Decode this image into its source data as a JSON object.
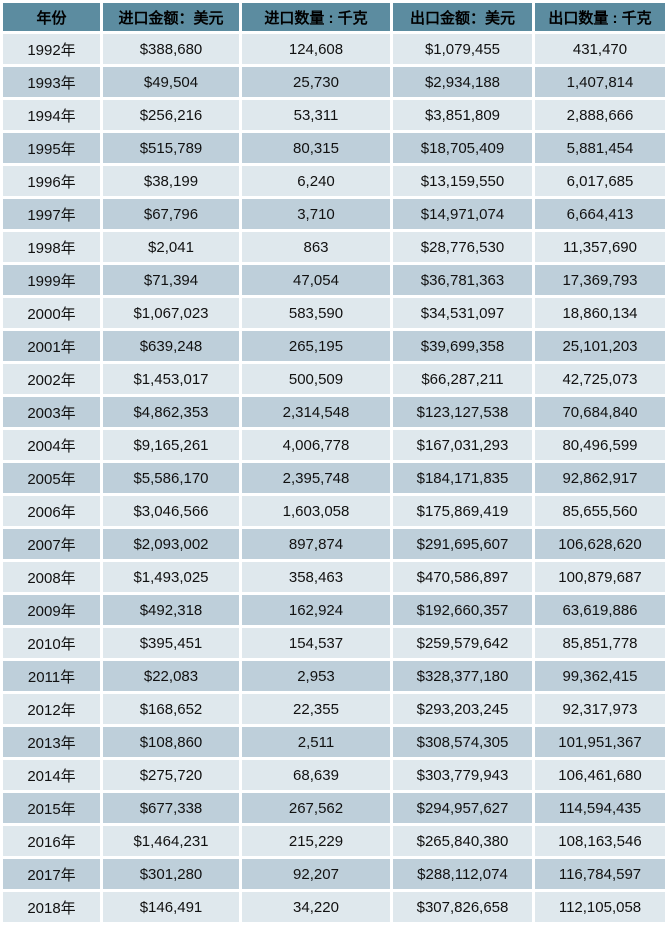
{
  "colors": {
    "header_bg": "#5C8CA0",
    "row_light": "#DFE8ED",
    "row_dark": "#BECFDA",
    "grid": "#FFFFFF",
    "text": "#111111"
  },
  "chart_data": {
    "type": "table",
    "title": "",
    "columns": [
      "年份",
      "进口金额：美元",
      "进口数量 : 千克",
      "出口金额：美元",
      "出口数量 : 千克"
    ],
    "column_keys": [
      "year",
      "import-amount-usd",
      "import-qty-kg",
      "export-amount-usd",
      "export-qty-kg"
    ],
    "rows": [
      [
        "1992年",
        "$388,680",
        "124,608",
        "$1,079,455",
        "431,470"
      ],
      [
        "1993年",
        "$49,504",
        "25,730",
        "$2,934,188",
        "1,407,814"
      ],
      [
        "1994年",
        "$256,216",
        "53,311",
        "$3,851,809",
        "2,888,666"
      ],
      [
        "1995年",
        "$515,789",
        "80,315",
        "$18,705,409",
        "5,881,454"
      ],
      [
        "1996年",
        "$38,199",
        "6,240",
        "$13,159,550",
        "6,017,685"
      ],
      [
        "1997年",
        "$67,796",
        "3,710",
        "$14,971,074",
        "6,664,413"
      ],
      [
        "1998年",
        "$2,041",
        "863",
        "$28,776,530",
        "11,357,690"
      ],
      [
        "1999年",
        "$71,394",
        "47,054",
        "$36,781,363",
        "17,369,793"
      ],
      [
        "2000年",
        "$1,067,023",
        "583,590",
        "$34,531,097",
        "18,860,134"
      ],
      [
        "2001年",
        "$639,248",
        "265,195",
        "$39,699,358",
        "25,101,203"
      ],
      [
        "2002年",
        "$1,453,017",
        "500,509",
        "$66,287,211",
        "42,725,073"
      ],
      [
        "2003年",
        "$4,862,353",
        "2,314,548",
        "$123,127,538",
        "70,684,840"
      ],
      [
        "2004年",
        "$9,165,261",
        "4,006,778",
        "$167,031,293",
        "80,496,599"
      ],
      [
        "2005年",
        "$5,586,170",
        "2,395,748",
        "$184,171,835",
        "92,862,917"
      ],
      [
        "2006年",
        "$3,046,566",
        "1,603,058",
        "$175,869,419",
        "85,655,560"
      ],
      [
        "2007年",
        "$2,093,002",
        "897,874",
        "$291,695,607",
        "106,628,620"
      ],
      [
        "2008年",
        "$1,493,025",
        "358,463",
        "$470,586,897",
        "100,879,687"
      ],
      [
        "2009年",
        "$492,318",
        "162,924",
        "$192,660,357",
        "63,619,886"
      ],
      [
        "2010年",
        "$395,451",
        "154,537",
        "$259,579,642",
        "85,851,778"
      ],
      [
        "2011年",
        "$22,083",
        "2,953",
        "$328,377,180",
        "99,362,415"
      ],
      [
        "2012年",
        "$168,652",
        "22,355",
        "$293,203,245",
        "92,317,973"
      ],
      [
        "2013年",
        "$108,860",
        "2,511",
        "$308,574,305",
        "101,951,367"
      ],
      [
        "2014年",
        "$275,720",
        "68,639",
        "$303,779,943",
        "106,461,680"
      ],
      [
        "2015年",
        "$677,338",
        "267,562",
        "$294,957,627",
        "114,594,435"
      ],
      [
        "2016年",
        "$1,464,231",
        "215,229",
        "$265,840,380",
        "108,163,546"
      ],
      [
        "2017年",
        "$301,280",
        "92,207",
        "$288,112,074",
        "116,784,597"
      ],
      [
        "2018年",
        "$146,491",
        "34,220",
        "$307,826,658",
        "112,105,058"
      ]
    ]
  }
}
